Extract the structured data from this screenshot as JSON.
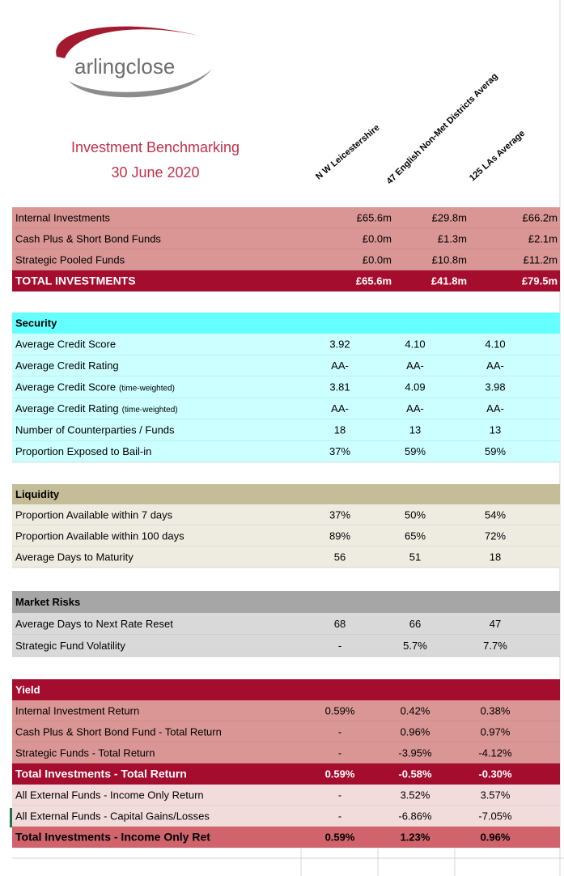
{
  "header": {
    "logo": "arlingclose",
    "title": "Investment Benchmarking",
    "date": "30 June 2020"
  },
  "columns": [
    "N W Leicestershire",
    "47 English Non-Met Districts Averag",
    "125 LAs Average"
  ],
  "sections": [
    {
      "rows": [
        {
          "label": "Internal Investments",
          "values": [
            "£65.6m",
            "£29.8m",
            "£66.2m"
          ]
        },
        {
          "label": "Cash Plus & Short Bond Funds",
          "values": [
            "£0.0m",
            "£1.3m",
            "£2.1m"
          ]
        },
        {
          "label": "Strategic Pooled Funds",
          "values": [
            "£0.0m",
            "£10.8m",
            "£11.2m"
          ]
        },
        {
          "label": "TOTAL INVESTMENTS",
          "values": [
            "£65.6m",
            "£41.8m",
            "£79.5m"
          ]
        }
      ]
    },
    {
      "title": "Security",
      "rows": [
        {
          "label": "Average Credit Score",
          "values": [
            "3.92",
            "4.10",
            "4.10"
          ]
        },
        {
          "label": "Average Credit Rating",
          "values": [
            "AA-",
            "AA-",
            "AA-"
          ]
        },
        {
          "label": "Average Credit Score",
          "note": "(time-weighted)",
          "values": [
            "3.81",
            "4.09",
            "3.98"
          ]
        },
        {
          "label": "Average Credit Rating",
          "note": "(time-weighted)",
          "values": [
            "AA-",
            "AA-",
            "AA-"
          ]
        },
        {
          "label": "Number of Counterparties / Funds",
          "values": [
            "18",
            "13",
            "13"
          ]
        },
        {
          "label": "Proportion Exposed to Bail-in",
          "values": [
            "37%",
            "59%",
            "59%"
          ]
        }
      ]
    },
    {
      "title": "Liquidity",
      "rows": [
        {
          "label": "Proportion Available within 7 days",
          "values": [
            "37%",
            "50%",
            "54%"
          ]
        },
        {
          "label": "Proportion Available within 100 days",
          "values": [
            "89%",
            "65%",
            "72%"
          ]
        },
        {
          "label": "Average Days to Maturity",
          "values": [
            "56",
            "51",
            "18"
          ]
        }
      ]
    },
    {
      "title": "Market Risks",
      "rows": [
        {
          "label": "Average Days to Next Rate Reset",
          "values": [
            "68",
            "66",
            "47"
          ]
        },
        {
          "label": "Strategic Fund Volatility",
          "values": [
            "-",
            "5.7%",
            "7.7%"
          ]
        }
      ]
    },
    {
      "title": "Yield",
      "rows": [
        {
          "label": "Internal Investment Return",
          "values": [
            "0.59%",
            "0.42%",
            "0.38%"
          ]
        },
        {
          "label": "Cash Plus & Short Bond Fund - Total Return",
          "values": [
            "-",
            "0.96%",
            "0.97%"
          ]
        },
        {
          "label": "Strategic Funds - Total Return",
          "values": [
            "-",
            "-3.95%",
            "-4.12%"
          ]
        },
        {
          "label": "Total Investments - Total Return",
          "values": [
            "0.59%",
            "-0.58%",
            "-0.30%"
          ]
        },
        {
          "label": "All External Funds - Income Only Return",
          "values": [
            "-",
            "3.52%",
            "3.57%"
          ]
        },
        {
          "label": "All External Funds - Capital Gains/Losses",
          "values": [
            "-",
            "-6.86%",
            "-7.05%"
          ]
        },
        {
          "label": "Total Investments - Income Only Ret",
          "values": [
            "0.59%",
            "1.23%",
            "0.96%"
          ]
        }
      ]
    }
  ]
}
